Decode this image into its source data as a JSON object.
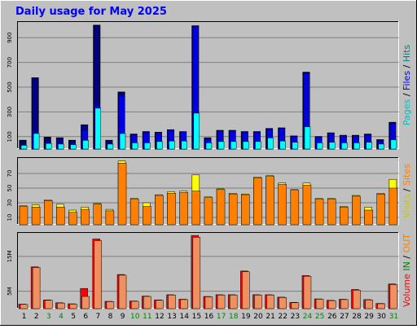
{
  "chart_data": {
    "type": "bar",
    "title": "Daily usage for May 2025",
    "categories": [
      "1",
      "2",
      "3",
      "4",
      "5",
      "6",
      "7",
      "8",
      "9",
      "10",
      "11",
      "12",
      "13",
      "14",
      "15",
      "16",
      "17",
      "18",
      "19",
      "20",
      "21",
      "22",
      "23",
      "24",
      "25",
      "26",
      "27",
      "28",
      "29",
      "30",
      "31"
    ],
    "weekend_days": [
      "3",
      "4",
      "10",
      "11",
      "17",
      "18",
      "24",
      "25",
      "31"
    ],
    "colors": {
      "title": "#0000ff",
      "frame_bg": "#c0c0c0",
      "plot_bg": "#c0c0c0",
      "hits": "#00d8ff",
      "files": "#0000e0",
      "pages": "#00ffff",
      "visits": "#ffff00",
      "sites": "#ff8000",
      "kbytes": "#ff0000",
      "in_out": "#ee9060",
      "weekday_label": "#000000",
      "weekend_label": "#008000"
    },
    "panels": [
      {
        "id": "pages-files-hits",
        "legend": [
          {
            "text": "Pages",
            "color": "#00c0c0"
          },
          {
            "text": " / ",
            "color": "#000000"
          },
          {
            "text": "Files",
            "color": "#0000ff"
          },
          {
            "text": " / ",
            "color": "#000000"
          },
          {
            "text": "Hits",
            "color": "#008080"
          }
        ],
        "yticks": [
          100,
          300,
          500,
          700,
          900
        ],
        "ylim": [
          0,
          1020
        ],
        "series": [
          {
            "name": "Hits",
            "values": [
              70,
              575,
              95,
              90,
              70,
              195,
              1000,
              70,
              460,
              120,
              140,
              135,
              155,
              140,
              995,
              90,
              150,
              150,
              140,
              140,
              165,
              170,
              105,
              620,
              100,
              130,
              110,
              110,
              120,
              75,
              215
            ]
          },
          {
            "name": "Files",
            "values": [
              35,
              135,
              55,
              50,
              45,
              150,
              350,
              45,
              425,
              115,
              130,
              130,
              150,
              140,
              990,
              75,
              145,
              145,
              135,
              135,
              160,
              165,
              100,
              610,
              95,
              125,
              105,
              105,
              115,
              65,
              205
            ]
          },
          {
            "name": "Pages",
            "values": [
              30,
              125,
              45,
              40,
              35,
              70,
              330,
              40,
              125,
              50,
              50,
              60,
              65,
              65,
              290,
              50,
              60,
              60,
              60,
              60,
              90,
              65,
              55,
              180,
              50,
              55,
              50,
              50,
              55,
              40,
              75
            ]
          }
        ]
      },
      {
        "id": "visits-sites",
        "legend": [
          {
            "text": "Visits",
            "color": "#c8c800"
          },
          {
            "text": " / ",
            "color": "#000000"
          },
          {
            "text": "Sites",
            "color": "#ff8000"
          }
        ],
        "yticks": [
          10,
          30,
          50,
          70
        ],
        "ylim": [
          0,
          90
        ],
        "series": [
          {
            "name": "Visits",
            "values": [
              26,
              27,
              34,
              28,
              20,
              24,
              29,
              21,
              87,
              36,
              30,
              41,
              45,
              46,
              68,
              38,
              49,
              43,
              42,
              65,
              67,
              57,
              48,
              57,
              36,
              36,
              25,
              40,
              24,
              43,
              62
            ]
          },
          {
            "name": "Sites",
            "values": [
              25,
              24,
              33,
              24,
              17,
              21,
              28,
              19,
              84,
              35,
              25,
              40,
              43,
              44,
              46,
              37,
              48,
              42,
              41,
              64,
              66,
              55,
              47,
              54,
              35,
              35,
              24,
              39,
              20,
              42,
              50
            ]
          }
        ]
      },
      {
        "id": "volume",
        "legend": [
          {
            "text": "Volume",
            "color": "#ff0000"
          },
          {
            "text": "  ",
            "color": "#000000"
          },
          {
            "text": "IN",
            "color": "#008000"
          },
          {
            "text": " / ",
            "color": "#000000"
          },
          {
            "text": "OUT",
            "color": "#ff8000"
          }
        ],
        "yticks": [
          "5M",
          "15M"
        ],
        "ytick_values": [
          5,
          15
        ],
        "ylim": [
          0,
          21.5
        ],
        "series": [
          {
            "name": "Volume",
            "values": [
              1.3,
              12.0,
              2.5,
              1.7,
              1.4,
              5.8,
              20.0,
              2.1,
              9.8,
              2.2,
              3.6,
              2.5,
              4.0,
              2.7,
              21.0,
              3.5,
              4.0,
              4.0,
              10.8,
              4.0,
              4.0,
              3.3,
              1.8,
              9.5,
              2.8,
              2.4,
              2.7,
              5.5,
              2.6,
              1.5,
              7.1
            ]
          },
          {
            "name": "IN/OUT",
            "values": [
              1.2,
              11.8,
              2.4,
              1.6,
              1.3,
              3.5,
              19.5,
              2.0,
              9.6,
              2.1,
              3.5,
              2.4,
              3.9,
              2.6,
              20.5,
              3.4,
              3.9,
              3.9,
              10.6,
              3.9,
              3.9,
              3.2,
              1.7,
              9.3,
              2.7,
              2.3,
              2.6,
              5.3,
              2.5,
              1.4,
              6.9
            ]
          }
        ]
      }
    ]
  }
}
